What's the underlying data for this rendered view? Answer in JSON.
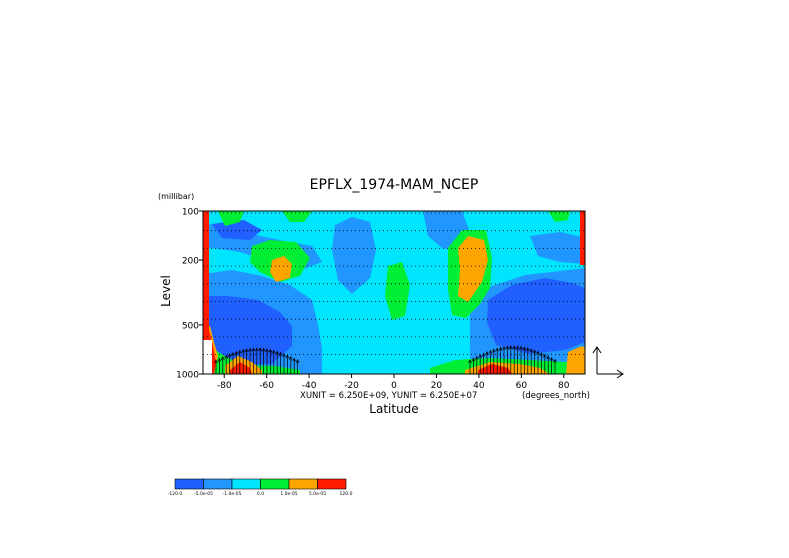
{
  "chart_data": {
    "type": "heatmap",
    "title": "EPFLX_1974-MAM_NCEP",
    "xlabel": "Latitude",
    "ylabel": "Level",
    "x_unit_label": "(degrees_north)",
    "y_unit_label": "(millibar)",
    "vector_scale_label": "XUNIT = 6.250E+09, YUNIT = 6.250E+07",
    "xlim": [
      -90,
      90
    ],
    "ylim": [
      1000,
      100
    ],
    "y_scale": "log",
    "x_ticks": [
      -80,
      -60,
      -40,
      -20,
      0,
      20,
      40,
      60,
      80
    ],
    "x_tick_labels": [
      "-80",
      "-60",
      "-40",
      "-20",
      "0",
      "20",
      "40",
      "60",
      "80"
    ],
    "y_ticks": [
      100,
      200,
      500,
      1000
    ],
    "y_tick_labels": [
      "100",
      "200",
      "500",
      "1000"
    ],
    "colorbar": {
      "colors": [
        "#1f60ff",
        "#2196ff",
        "#00e5ff",
        "#00ee33",
        "#ffa500",
        "#ff1a00"
      ],
      "tick_labels": [
        "-120.0",
        "-5.0e-05",
        "-1.0e-05",
        "0.0",
        "1.0e-05",
        "5.0e-05",
        "120.0"
      ]
    }
  }
}
